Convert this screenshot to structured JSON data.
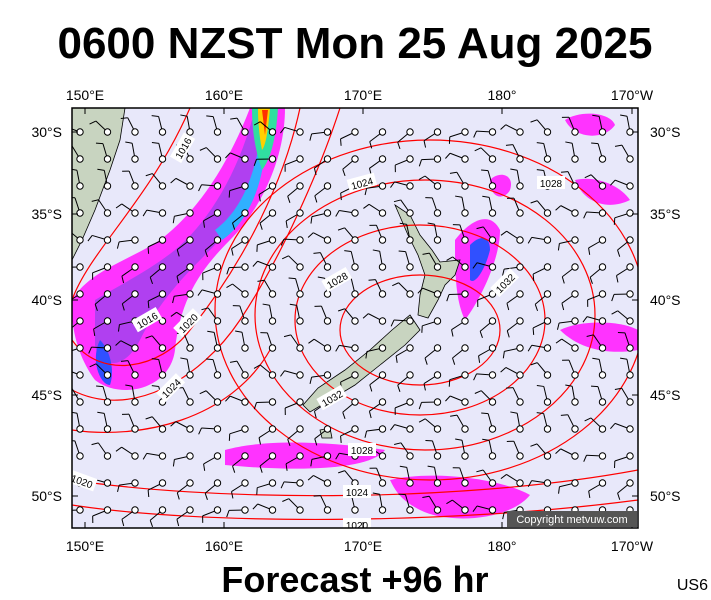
{
  "title": "0600 NZST Mon 25 Aug 2025",
  "subtitle": "Forecast +96 hr",
  "model": "US6",
  "copyright": "Copyright metvuw.com",
  "longitude_labels": [
    "150°E",
    "160°E",
    "170°E",
    "180°",
    "170°W"
  ],
  "latitude_labels": [
    "30°S",
    "35°S",
    "40°S",
    "45°S",
    "50°S"
  ],
  "isobar_labels": [
    "1016",
    "1024",
    "1028",
    "1028",
    "1032",
    "1016",
    "1020",
    "1024",
    "1032",
    "1028",
    "1020",
    "1024",
    "1020"
  ]
}
